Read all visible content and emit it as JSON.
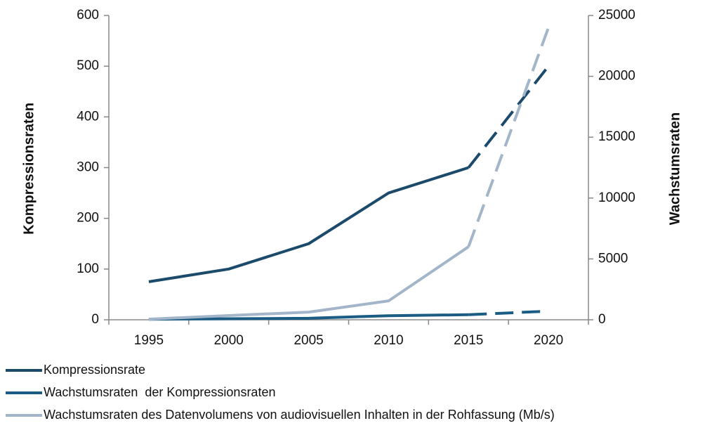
{
  "chart_data": {
    "type": "line",
    "categories": [
      "1995",
      "2000",
      "2005",
      "2010",
      "2015",
      "2020"
    ],
    "ylabel": "Kompressionsraten",
    "y2label": "Wachstumsraten",
    "ylim": [
      0,
      600
    ],
    "yticks": [
      0,
      100,
      200,
      300,
      400,
      500,
      600
    ],
    "y2lim": [
      0,
      25000
    ],
    "y2ticks": [
      0,
      5000,
      10000,
      15000,
      20000,
      25000
    ],
    "dashed_from_index": 4,
    "series": [
      {
        "name": "Kompressionsrate",
        "color": "#1c4a6b",
        "values": [
          75,
          100,
          150,
          250,
          300,
          500
        ]
      },
      {
        "name": "Wachstumsraten  der Kompressionsraten",
        "color": "#1b5c84",
        "values": [
          1,
          2,
          3,
          8,
          10,
          17
        ]
      },
      {
        "name": "Wachstumsraten des Datenvolumens von audiovisuellen Inhalten in der Rohfassung (Mb/s)",
        "color": "#a3b5c9",
        "axis": "y2",
        "values": [
          50,
          350,
          630,
          1550,
          6000,
          24000
        ]
      }
    ]
  }
}
